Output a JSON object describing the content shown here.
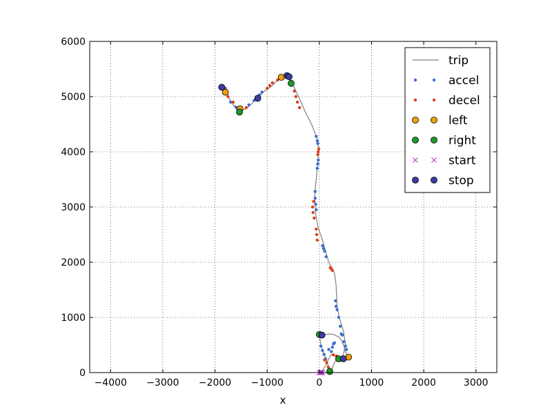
{
  "chart_data": {
    "type": "scatter",
    "title": "",
    "xlabel": "x",
    "ylabel": "",
    "xlim": [
      -4400,
      3400
    ],
    "ylim": [
      0,
      6000
    ],
    "x_ticks": [
      -4000,
      -3000,
      -2000,
      -1000,
      0,
      1000,
      2000,
      3000
    ],
    "x_tick_labels": [
      "−4000",
      "−3000",
      "−2000",
      "−1000",
      "0",
      "1000",
      "2000",
      "3000"
    ],
    "y_ticks": [
      0,
      1000,
      2000,
      3000,
      4000,
      5000,
      6000
    ],
    "y_tick_labels": [
      "0",
      "1000",
      "2000",
      "3000",
      "4000",
      "5000",
      "6000"
    ],
    "grid": true,
    "legend_position": "top-right",
    "trip": {
      "name": "trip",
      "color": "#808080",
      "points": [
        [
          0,
          0
        ],
        [
          60,
          40
        ],
        [
          120,
          130
        ],
        [
          180,
          250
        ],
        [
          230,
          330
        ],
        [
          300,
          300
        ],
        [
          380,
          250
        ],
        [
          470,
          240
        ],
        [
          560,
          280
        ],
        [
          500,
          380
        ],
        [
          470,
          480
        ],
        [
          430,
          580
        ],
        [
          380,
          640
        ],
        [
          280,
          690
        ],
        [
          180,
          700
        ],
        [
          60,
          680
        ],
        [
          10,
          620
        ],
        [
          30,
          500
        ],
        [
          60,
          400
        ],
        [
          110,
          280
        ],
        [
          150,
          180
        ],
        [
          180,
          100
        ],
        [
          200,
          20
        ],
        [
          220,
          0
        ],
        [
          240,
          40
        ],
        [
          260,
          120
        ],
        [
          300,
          200
        ],
        [
          380,
          260
        ],
        [
          460,
          320
        ],
        [
          500,
          520
        ],
        [
          460,
          760
        ],
        [
          380,
          1000
        ],
        [
          340,
          1200
        ],
        [
          330,
          1400
        ],
        [
          320,
          1600
        ],
        [
          290,
          1800
        ],
        [
          240,
          1900
        ],
        [
          180,
          2000
        ],
        [
          120,
          2200
        ],
        [
          60,
          2400
        ],
        [
          -20,
          2620
        ],
        [
          -60,
          2800
        ],
        [
          -80,
          3000
        ],
        [
          -90,
          3200
        ],
        [
          -70,
          3400
        ],
        [
          -50,
          3600
        ],
        [
          -30,
          3800
        ],
        [
          -20,
          4000
        ],
        [
          -30,
          4200
        ],
        [
          -80,
          4330
        ],
        [
          -150,
          4500
        ],
        [
          -260,
          4700
        ],
        [
          -350,
          4900
        ],
        [
          -450,
          5100
        ],
        [
          -520,
          5250
        ],
        [
          -560,
          5330
        ],
        [
          -600,
          5370
        ],
        [
          -680,
          5380
        ],
        [
          -750,
          5350
        ],
        [
          -900,
          5200
        ],
        [
          -1050,
          5100
        ],
        [
          -1200,
          4960
        ],
        [
          -1300,
          4870
        ],
        [
          -1400,
          4780
        ],
        [
          -1500,
          4750
        ],
        [
          -1550,
          4720
        ],
        [
          -1650,
          4850
        ],
        [
          -1750,
          5000
        ],
        [
          -1800,
          5100
        ],
        [
          -1850,
          5170
        ]
      ]
    },
    "accel": {
      "name": "accel",
      "color": "#3b6cd1",
      "points": [
        [
          30,
          480
        ],
        [
          60,
          400
        ],
        [
          90,
          330
        ],
        [
          120,
          250
        ],
        [
          380,
          250
        ],
        [
          450,
          250
        ],
        [
          520,
          420
        ],
        [
          500,
          480
        ],
        [
          470,
          560
        ],
        [
          440,
          680
        ],
        [
          420,
          700
        ],
        [
          400,
          840
        ],
        [
          370,
          1000
        ],
        [
          340,
          1140
        ],
        [
          320,
          1200
        ],
        [
          310,
          1300
        ],
        [
          130,
          2100
        ],
        [
          100,
          2200
        ],
        [
          80,
          2250
        ],
        [
          60,
          2300
        ],
        [
          -60,
          2950
        ],
        [
          -70,
          3050
        ],
        [
          -80,
          3160
        ],
        [
          -80,
          3280
        ],
        [
          -40,
          3700
        ],
        [
          -30,
          3780
        ],
        [
          -20,
          3850
        ],
        [
          -30,
          4150
        ],
        [
          -40,
          4200
        ],
        [
          -60,
          4280
        ],
        [
          -1100,
          5080
        ],
        [
          -1150,
          5030
        ],
        [
          -1250,
          4930
        ],
        [
          -1350,
          4850
        ],
        [
          -1550,
          4760
        ],
        [
          -1600,
          4810
        ],
        [
          -1700,
          4900
        ],
        [
          -1800,
          5150
        ],
        [
          -1850,
          5170
        ],
        [
          230,
          380
        ],
        [
          180,
          420
        ],
        [
          250,
          460
        ],
        [
          270,
          520
        ],
        [
          290,
          540
        ]
      ]
    },
    "decel": {
      "name": "decel",
      "color": "#d9401a",
      "points": [
        [
          100,
          230
        ],
        [
          140,
          180
        ],
        [
          170,
          100
        ],
        [
          200,
          60
        ],
        [
          270,
          320
        ],
        [
          330,
          300
        ],
        [
          250,
          1850
        ],
        [
          230,
          1880
        ],
        [
          210,
          1900
        ],
        [
          -100,
          2800
        ],
        [
          -120,
          2900
        ],
        [
          -130,
          3000
        ],
        [
          -110,
          3100
        ],
        [
          -60,
          2600
        ],
        [
          -50,
          2500
        ],
        [
          -40,
          2400
        ],
        [
          -20,
          4000
        ],
        [
          -10,
          4050
        ],
        [
          -30,
          3950
        ],
        [
          -380,
          4800
        ],
        [
          -420,
          4900
        ],
        [
          -450,
          5000
        ],
        [
          -480,
          5100
        ],
        [
          -900,
          5250
        ],
        [
          -950,
          5200
        ],
        [
          -1000,
          5150
        ],
        [
          -1400,
          4800
        ],
        [
          -1650,
          4900
        ],
        [
          -1750,
          5000
        ],
        [
          -800,
          5300
        ],
        [
          -700,
          5360
        ]
      ]
    },
    "left": {
      "name": "left",
      "color": "#f0a010",
      "points": [
        [
          560,
          280
        ],
        [
          -730,
          5350
        ],
        [
          -1800,
          5080
        ],
        [
          -1520,
          4780
        ]
      ]
    },
    "right": {
      "name": "right",
      "color": "#1c9a28",
      "points": [
        [
          0,
          690
        ],
        [
          370,
          250
        ],
        [
          200,
          20
        ],
        [
          -540,
          5240
        ],
        [
          -1530,
          4720
        ]
      ]
    },
    "start": {
      "name": "start",
      "color": "#b030c0",
      "points": [
        [
          0,
          0
        ],
        [
          20,
          0
        ],
        [
          40,
          0
        ],
        [
          60,
          0
        ]
      ]
    },
    "stop": {
      "name": "stop",
      "color": "#3c3ca0",
      "points": [
        [
          460,
          250
        ],
        [
          50,
          680
        ],
        [
          -620,
          5380
        ],
        [
          -580,
          5360
        ],
        [
          -1180,
          4970
        ],
        [
          -1870,
          5170
        ]
      ]
    },
    "legend": [
      "trip",
      "accel",
      "decel",
      "left",
      "right",
      "start",
      "stop"
    ]
  }
}
